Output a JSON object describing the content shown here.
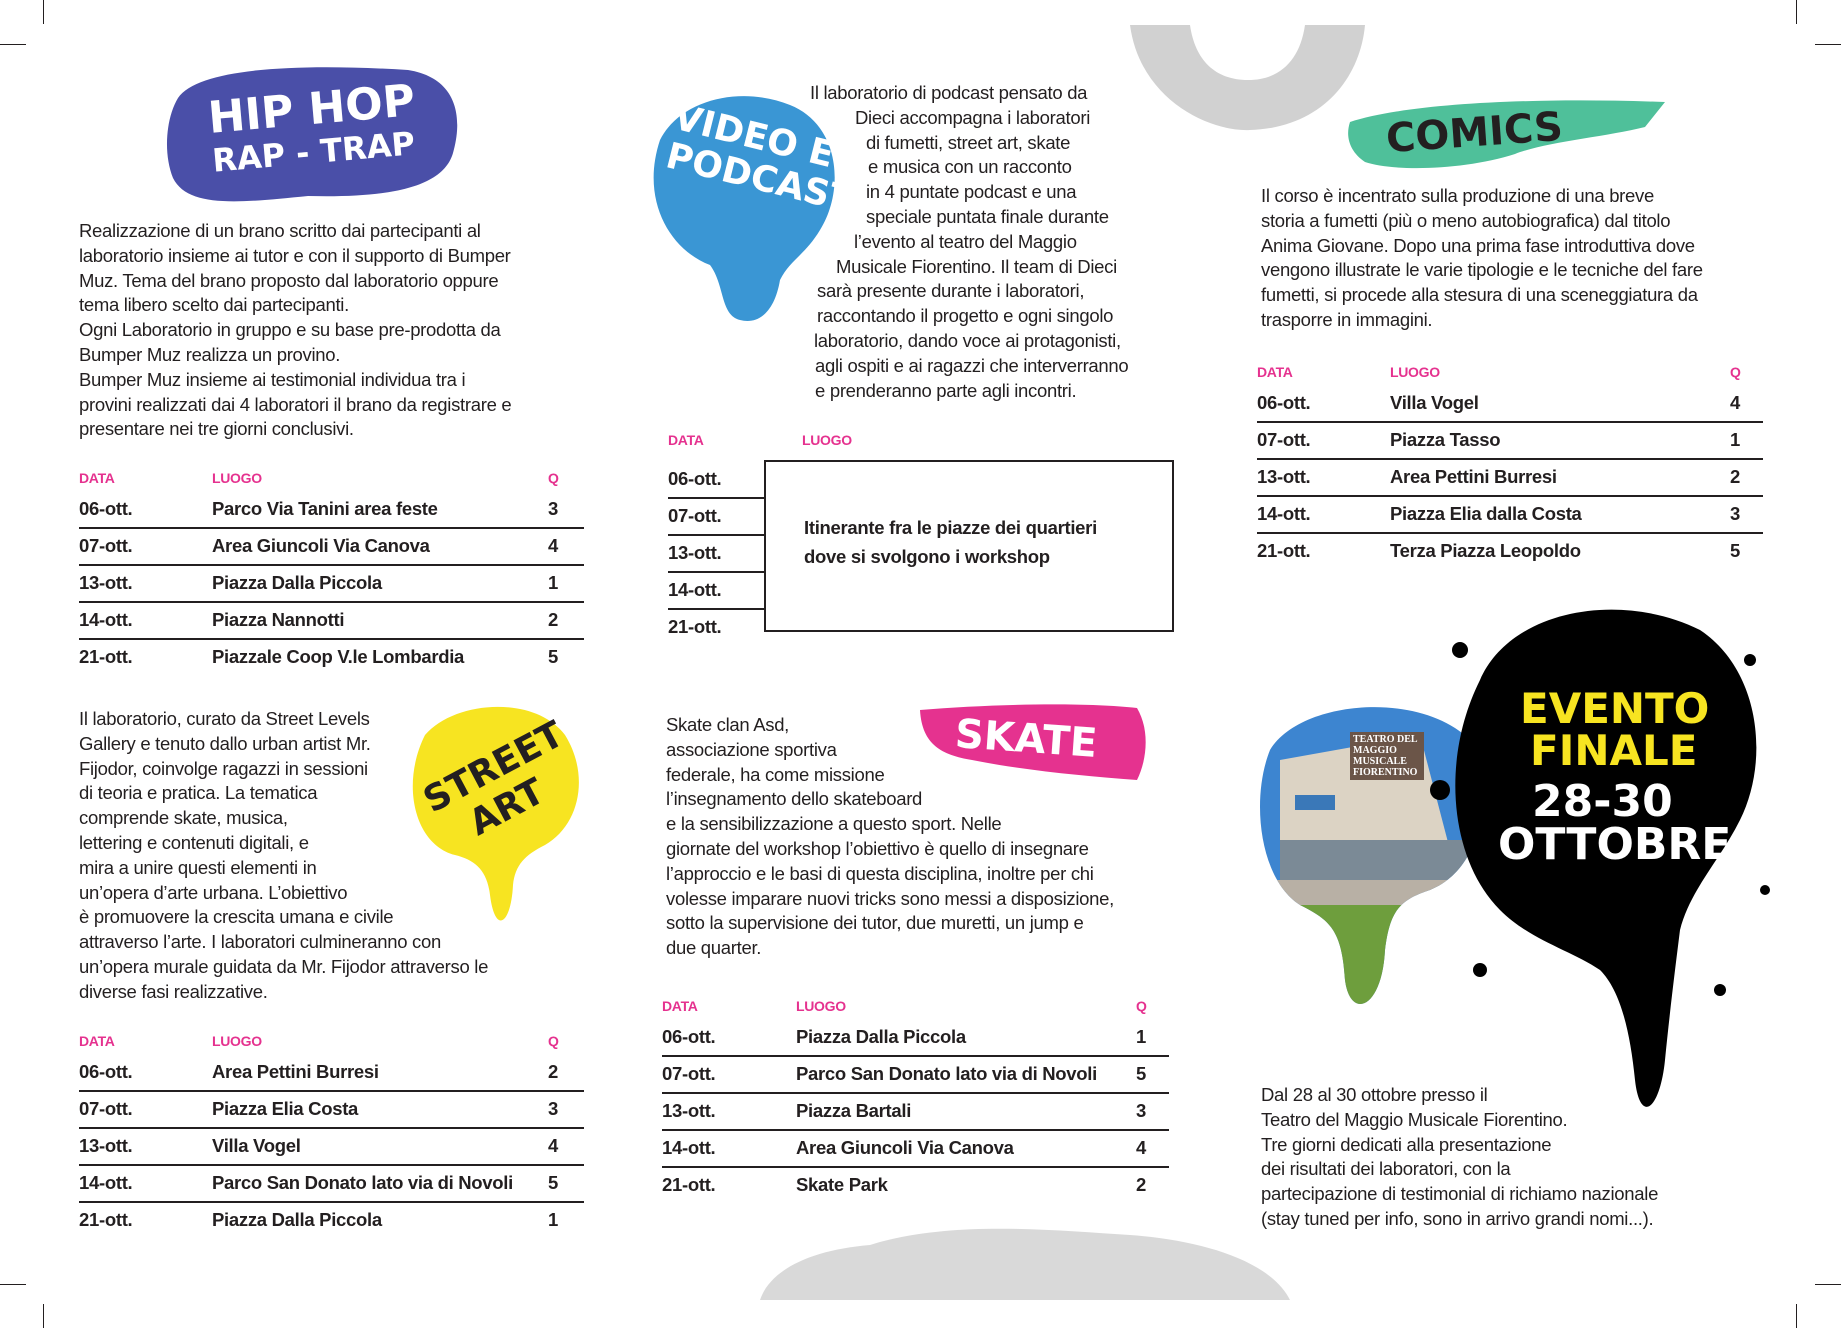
{
  "colors": {
    "accent_pink": "#e5328f",
    "hiphop_purple": "#4a4fa8",
    "video_blue": "#3a96d4",
    "comics_green": "#4fc09a",
    "streetart_yellow": "#f7e421",
    "evento_yellow": "#f7e421"
  },
  "hiphop": {
    "title_line1": "HIP HOP",
    "title_line2": "RAP - TRAP",
    "lines": [
      "Realizzazione di un brano scritto dai partecipanti al",
      "laboratorio insieme ai tutor e con il supporto di Bumper",
      "Muz. Tema del brano proposto dal laboratorio oppure",
      "tema libero scelto dai partecipanti.",
      "Ogni Laboratorio in gruppo e su base pre-prodotta da",
      "Bumper Muz realizza un provino.",
      "Bumper Muz insieme ai testimonial individua tra i",
      "provini realizzati dai 4 laboratori il brano da registrare e",
      "presentare nei tre giorni conclusivi."
    ],
    "table": {
      "headers": [
        "DATA",
        "LUOGO",
        "Q"
      ],
      "rows": [
        [
          "06-ott.",
          "Parco Via Tanini area feste",
          "3"
        ],
        [
          "07-ott.",
          "Area Giuncoli Via Canova",
          "4"
        ],
        [
          "13-ott.",
          "Piazza Dalla Piccola",
          "1"
        ],
        [
          "14-ott.",
          "Piazza Nannotti",
          "2"
        ],
        [
          "21-ott.",
          "Piazzale Coop V.le Lombardia",
          "5"
        ]
      ]
    }
  },
  "video": {
    "title_line1": "VIDEO E",
    "title_line2": "PODCAST",
    "lines": [
      "Il laboratorio di podcast pensato da",
      "Dieci accompagna i laboratori",
      "di fumetti, street art, skate",
      "e musica con un racconto",
      "in 4 puntate podcast e una",
      "speciale puntata finale durante",
      "l’evento al teatro del Maggio",
      "Musicale Fiorentino. Il team di Dieci",
      "sarà presente durante i laboratori,",
      "raccontando il progetto e ogni singolo",
      "laboratorio, dando voce ai protagonisti,",
      "agli ospiti e ai ragazzi che interverranno",
      "e prenderanno parte agli incontri."
    ],
    "table": {
      "headers": [
        "DATA",
        "LUOGO"
      ],
      "dates": [
        "06-ott.",
        "07-ott.",
        "13-ott.",
        "14-ott.",
        "21-ott."
      ],
      "box_lines": [
        "Itinerante fra le piazze dei quartieri",
        "dove si svolgono i workshop"
      ]
    }
  },
  "comics": {
    "title": "COMICS",
    "lines": [
      "Il corso è incentrato sulla produzione di una breve",
      "storia a fumetti (più o meno autobiografica) dal titolo",
      "Anima Giovane. Dopo una prima fase introduttiva dove",
      "vengono illustrate le varie tipologie e le tecniche del fare",
      "fumetti, si procede alla stesura di una sceneggiatura da",
      "trasporre in immagini."
    ],
    "table": {
      "headers": [
        "DATA",
        "LUOGO",
        "Q"
      ],
      "rows": [
        [
          "06-ott.",
          "Villa Vogel",
          "4"
        ],
        [
          "07-ott.",
          "Piazza Tasso",
          "1"
        ],
        [
          "13-ott.",
          "Area Pettini Burresi",
          "2"
        ],
        [
          "14-ott.",
          "Piazza Elia dalla Costa",
          "3"
        ],
        [
          "21-ott.",
          "Terza Piazza Leopoldo",
          "5"
        ]
      ]
    }
  },
  "streetart": {
    "title_line1": "STREET",
    "title_line2": "ART",
    "lines": [
      "Il laboratorio, curato da Street Levels",
      "Gallery e tenuto dallo urban artist Mr.",
      "Fijodor, coinvolge ragazzi in sessioni",
      "di teoria e pratica. La tematica",
      "comprende skate, musica,",
      "lettering e contenuti digitali, e",
      "mira a unire questi elementi in",
      "un’opera d’arte urbana. L’obiettivo",
      "è promuovere la crescita umana e civile",
      "attraverso l’arte. I laboratori culmineranno con",
      "un’opera murale guidata da Mr. Fijodor attraverso le",
      "diverse fasi realizzative."
    ],
    "table": {
      "headers": [
        "DATA",
        "LUOGO",
        "Q"
      ],
      "rows": [
        [
          "06-ott.",
          "Area Pettini Burresi",
          "2"
        ],
        [
          "07-ott.",
          "Piazza Elia Costa",
          "3"
        ],
        [
          "13-ott.",
          "Villa Vogel",
          "4"
        ],
        [
          "14-ott.",
          "Parco San Donato lato via di Novoli",
          "5"
        ],
        [
          "21-ott.",
          "Piazza Dalla Piccola",
          "1"
        ]
      ]
    }
  },
  "skate": {
    "title": "SKATE",
    "lines": [
      "Skate clan Asd,",
      "associazione sportiva",
      "federale, ha come missione",
      "l’insegnamento dello skateboard",
      "e la sensibilizzazione a questo sport. Nelle",
      "giornate del workshop l’obiettivo è quello di insegnare",
      "l’approccio e le basi di questa disciplina, inoltre per chi",
      "volesse imparare nuovi tricks sono messi a disposizione,",
      "sotto la supervisione dei tutor, due muretti, un jump e",
      "due quarter."
    ],
    "table": {
      "headers": [
        "DATA",
        "LUOGO",
        "Q"
      ],
      "rows": [
        [
          "06-ott.",
          "Piazza Dalla Piccola",
          "1"
        ],
        [
          "07-ott.",
          "Parco San Donato lato via di Novoli",
          "5"
        ],
        [
          "13-ott.",
          "Piazza Bartali",
          "3"
        ],
        [
          "14-ott.",
          "Area Giuncoli Via Canova",
          "4"
        ],
        [
          "21-ott.",
          "Skate Park",
          "2"
        ]
      ]
    }
  },
  "evento": {
    "title_line1": "EVENTO",
    "title_line2": "FINALE",
    "date_line1": "28-30",
    "date_line2": "OTTOBRE",
    "photo_sign": "TEATRO DEL MAGGIO MUSICALE FIORENTINO",
    "lines": [
      "Dal 28 al 30 ottobre presso il",
      "Teatro del Maggio Musicale Fiorentino.",
      "Tre giorni dedicati alla presentazione",
      "dei risultati dei laboratori, con la",
      "partecipazione di testimonial di richiamo nazionale",
      "(stay tuned per info, sono in arrivo grandi nomi...)."
    ]
  }
}
